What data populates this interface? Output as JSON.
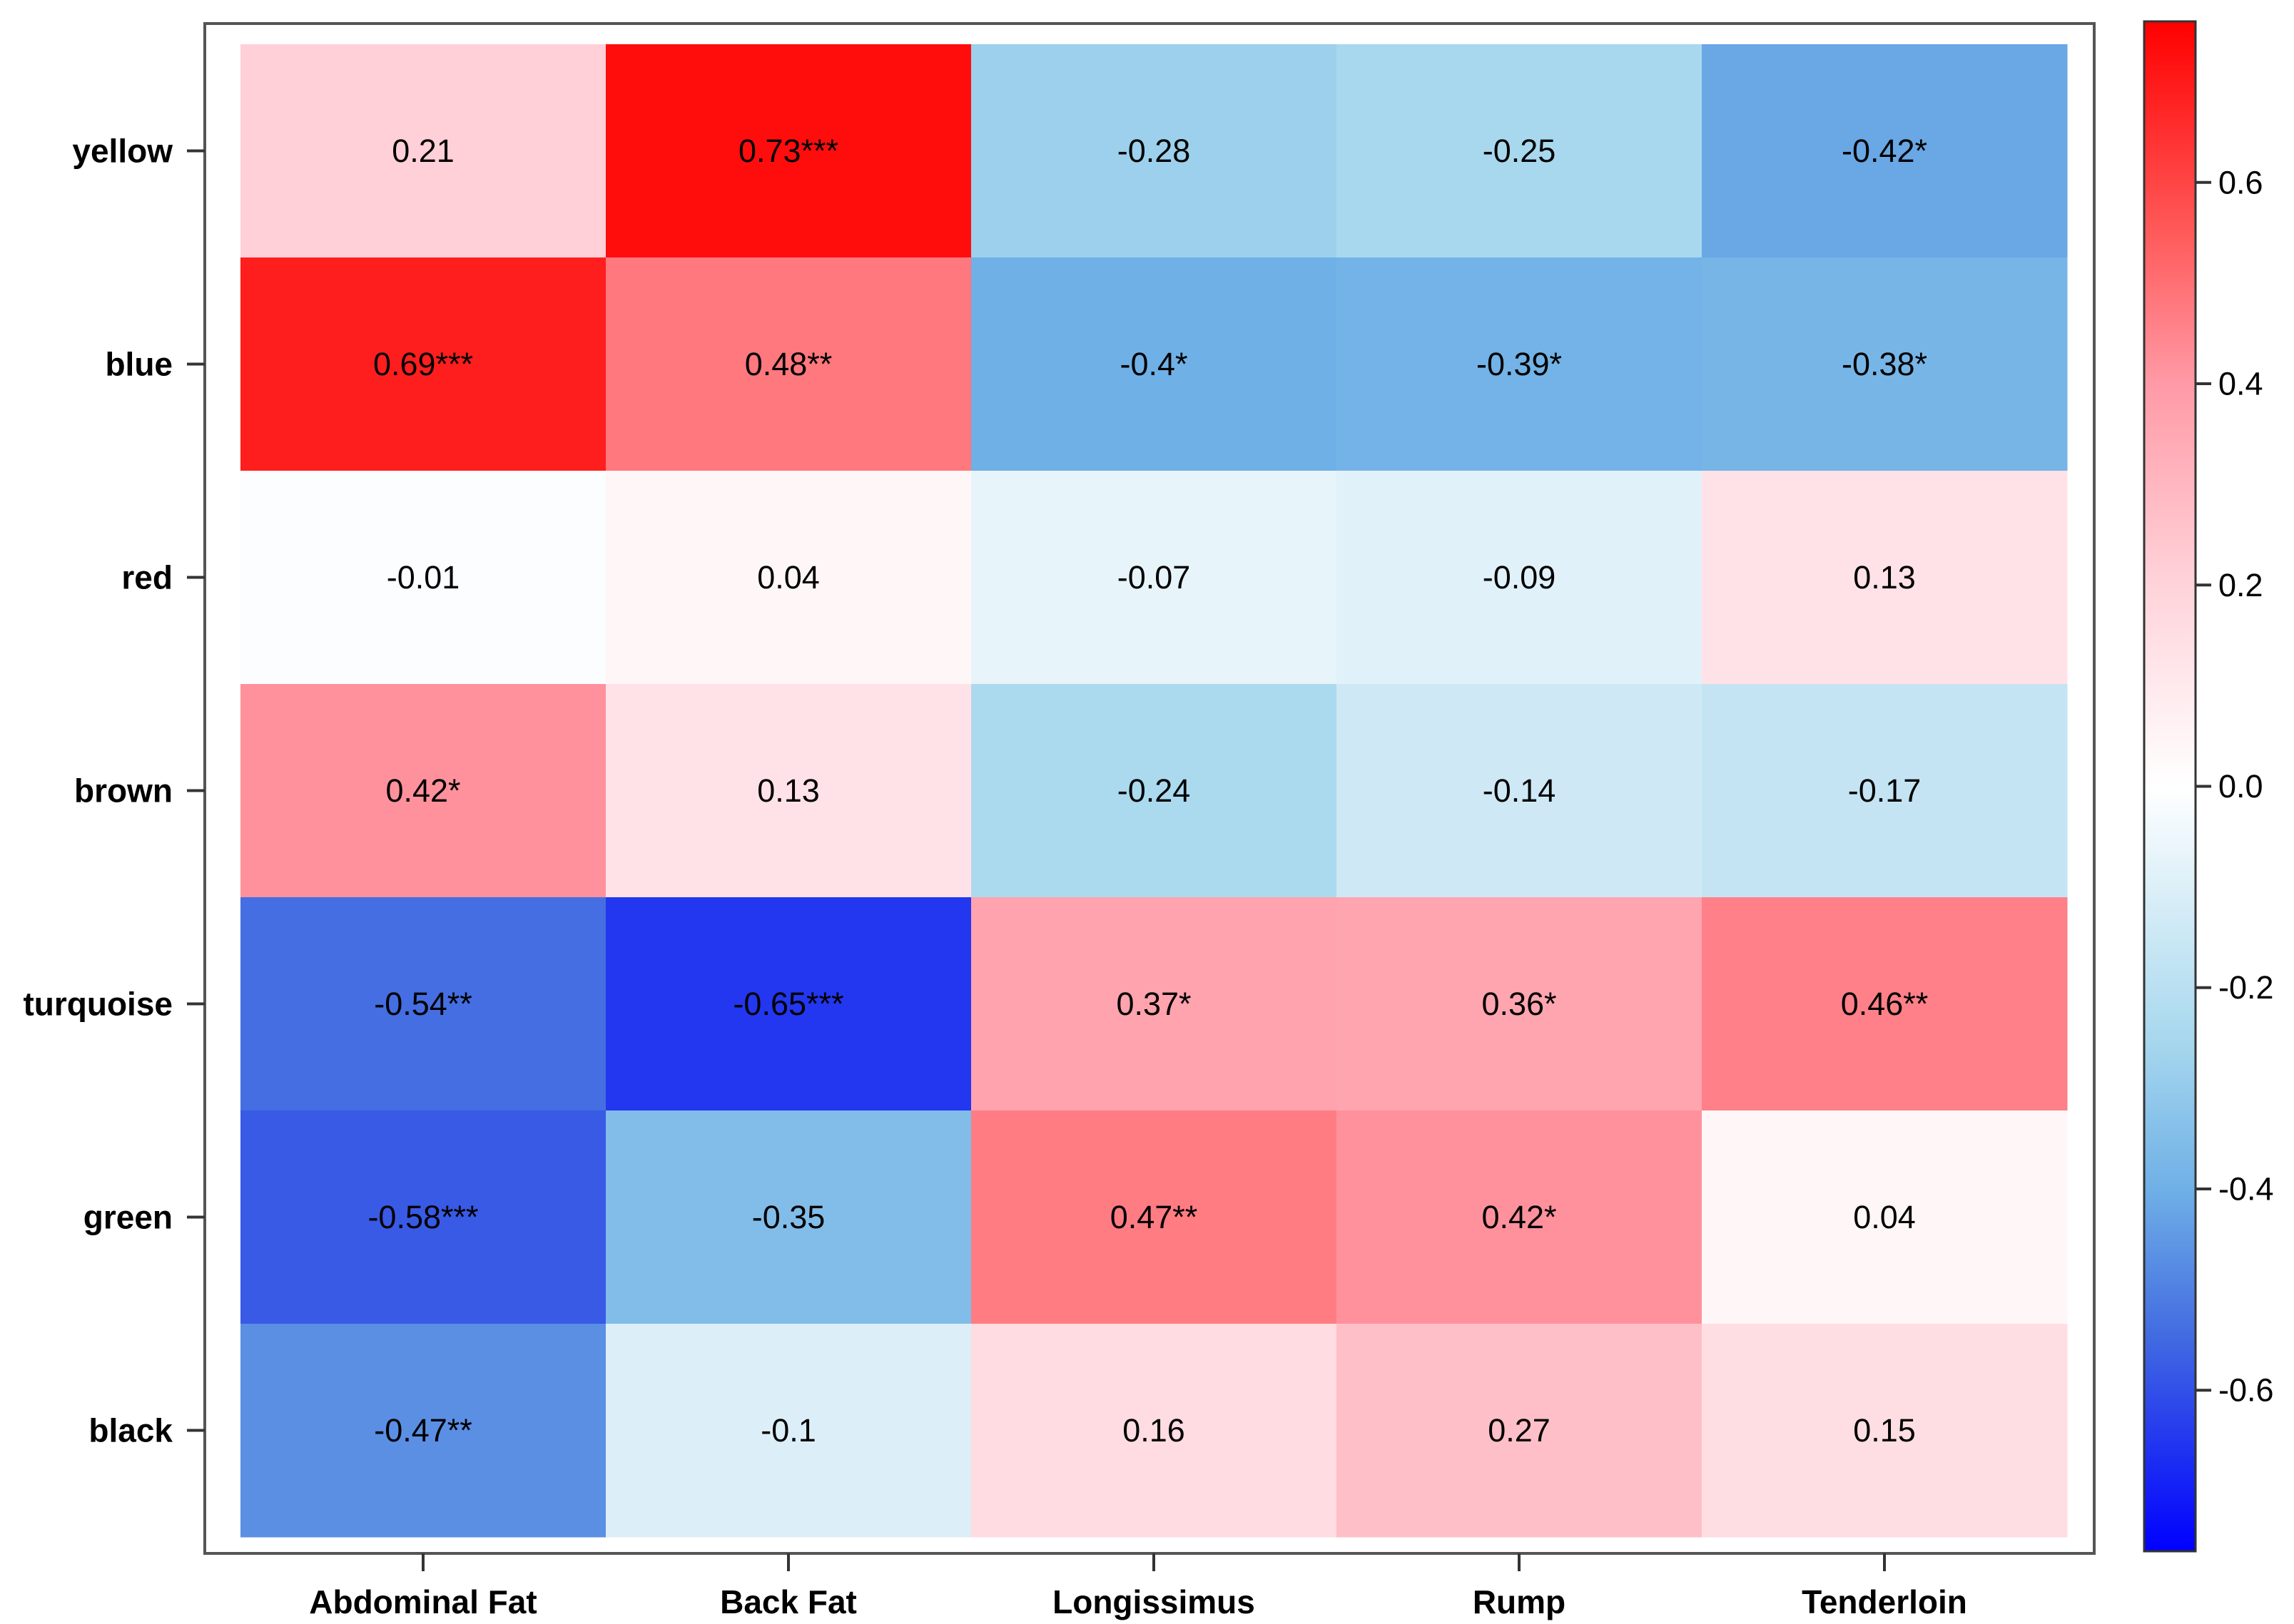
{
  "chart_data": {
    "type": "heatmap",
    "title": "",
    "xlabel": "",
    "ylabel": "",
    "columns": [
      "Abdominal Fat",
      "Back Fat",
      "Longissimus",
      "Rump",
      "Tenderloin"
    ],
    "rows": [
      "yellow",
      "blue",
      "red",
      "brown",
      "turquoise",
      "green",
      "black"
    ],
    "values": [
      [
        0.21,
        0.73,
        -0.28,
        -0.25,
        -0.42
      ],
      [
        0.69,
        0.48,
        -0.4,
        -0.39,
        -0.38
      ],
      [
        -0.01,
        0.04,
        -0.07,
        -0.09,
        0.13
      ],
      [
        0.42,
        0.13,
        -0.24,
        -0.14,
        -0.17
      ],
      [
        -0.54,
        -0.65,
        0.37,
        0.36,
        0.46
      ],
      [
        -0.58,
        -0.35,
        0.47,
        0.42,
        0.04
      ],
      [
        -0.47,
        -0.1,
        0.16,
        0.27,
        0.15
      ]
    ],
    "labels": [
      [
        "0.21",
        "0.73***",
        "-0.28",
        "-0.25",
        "-0.42*"
      ],
      [
        "0.69***",
        "0.48**",
        "-0.4*",
        "-0.39*",
        "-0.38*"
      ],
      [
        "-0.01",
        "0.04",
        "-0.07",
        "-0.09",
        "0.13"
      ],
      [
        "0.42*",
        "0.13",
        "-0.24",
        "-0.14",
        "-0.17"
      ],
      [
        "-0.54**",
        "-0.65***",
        "0.37*",
        "0.36*",
        "0.46**"
      ],
      [
        "-0.58***",
        "-0.35",
        "0.47**",
        "0.42*",
        "0.04"
      ],
      [
        "-0.47**",
        "-0.1",
        "0.16",
        "0.27",
        "0.15"
      ]
    ],
    "colorbar": {
      "range": [
        -0.76,
        0.76
      ],
      "ticks": [
        0.6,
        0.4,
        0.2,
        0.0,
        -0.2,
        -0.4,
        -0.6
      ],
      "tick_labels": [
        "0.6",
        "0.4",
        "0.2",
        "0.0",
        "-0.2",
        "-0.4",
        "-0.6"
      ],
      "stops": [
        {
          "v": -0.76,
          "color": "#0000ff"
        },
        {
          "v": -0.55,
          "color": "#4169e1"
        },
        {
          "v": -0.4,
          "color": "#6fb0e6"
        },
        {
          "v": -0.25,
          "color": "#a8d8ee"
        },
        {
          "v": 0.0,
          "color": "#ffffff"
        },
        {
          "v": 0.2,
          "color": "#ffd3da"
        },
        {
          "v": 0.4,
          "color": "#ff9aa6"
        },
        {
          "v": 0.55,
          "color": "#ff5a5a"
        },
        {
          "v": 0.76,
          "color": "#ff0000"
        }
      ]
    },
    "grid": false,
    "legend": "right colorbar"
  }
}
